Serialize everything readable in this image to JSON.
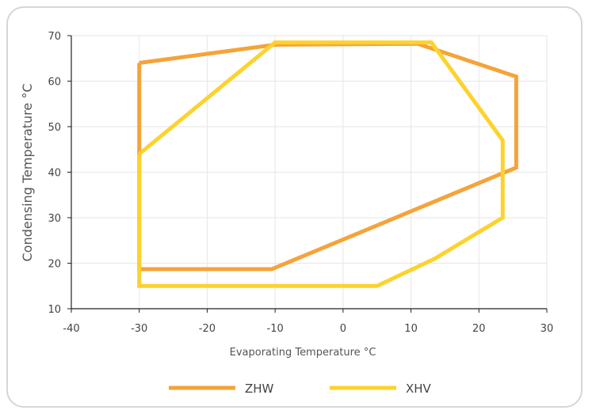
{
  "chart_data": {
    "type": "line",
    "title": "",
    "xlabel": "Evaporating Temperature °C",
    "ylabel": "Condensing Temperature °C",
    "xlim": [
      -40,
      30
    ],
    "ylim": [
      10,
      70
    ],
    "x_ticks": [
      -40,
      -30,
      -20,
      -10,
      0,
      10,
      20,
      30
    ],
    "y_ticks": [
      10,
      20,
      30,
      40,
      50,
      60,
      70
    ],
    "grid": true,
    "legend_position": "bottom",
    "series": [
      {
        "name": "ZHW",
        "color": "#F5A33A",
        "points": [
          [
            -30,
            64
          ],
          [
            -10,
            68
          ],
          [
            11,
            68.2
          ],
          [
            25.5,
            61
          ],
          [
            25.5,
            41
          ],
          [
            -10.5,
            18.7
          ],
          [
            -30,
            18.7
          ],
          [
            -30,
            64
          ]
        ]
      },
      {
        "name": "XHV",
        "color": "#FDD22D",
        "points": [
          [
            -30,
            44
          ],
          [
            -10,
            68.5
          ],
          [
            13,
            68.5
          ],
          [
            23.5,
            47
          ],
          [
            23.5,
            30
          ],
          [
            13.5,
            21
          ],
          [
            5,
            15
          ],
          [
            -30,
            15
          ],
          [
            -30,
            44
          ]
        ]
      }
    ]
  }
}
